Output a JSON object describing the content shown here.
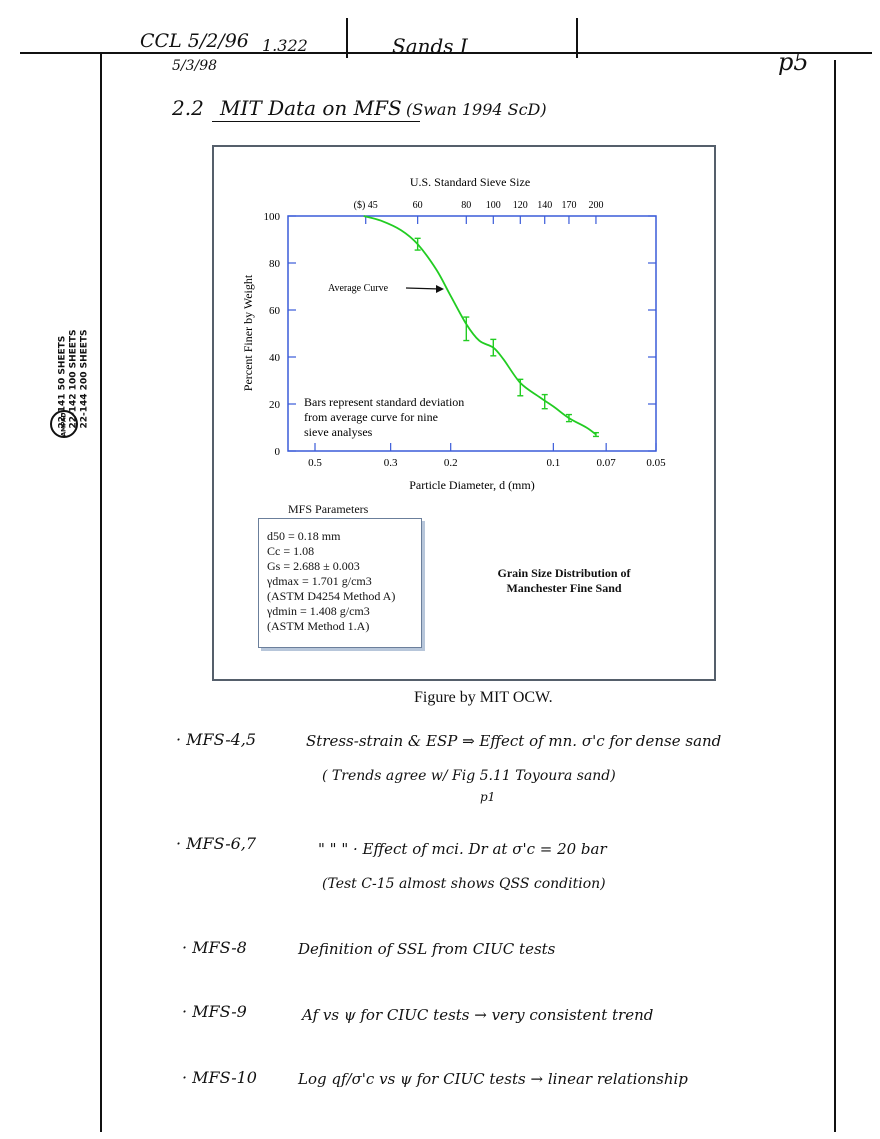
{
  "header": {
    "date_code": "CCL 5/2/96",
    "ref": "1.322",
    "date2": "5/3/98",
    "title": "Sands I",
    "page": "p5"
  },
  "heading": {
    "number": "2.2",
    "text": "MIT Data on MFS",
    "source": "(Swan 1994 ScD)"
  },
  "pad_label": {
    "lines": [
      "22-141   50 SHEETS",
      "22-142  100 SHEETS",
      "22-144  200 SHEETS"
    ],
    "brand": "AMPAD"
  },
  "chart_data": {
    "type": "line",
    "title": "U.S. Standard Sieve Size",
    "top_ticks": [
      "($) 45",
      "60",
      "80",
      "100",
      "120",
      "140",
      "170",
      "200"
    ],
    "top_tick_d": [
      0.355,
      0.25,
      0.18,
      0.15,
      0.125,
      0.106,
      0.09,
      0.075
    ],
    "xlabel": "Particle Diameter, d (mm)",
    "ylabel": "Percent Finer by Weight",
    "x_ticks": [
      "0.5",
      "0.3",
      "0.2",
      "0.1",
      "0.07",
      "0.05"
    ],
    "x_tick_d": [
      0.5,
      0.3,
      0.2,
      0.1,
      0.07,
      0.05
    ],
    "x_scale": "log, decreasing",
    "xlim": [
      0.6,
      0.05
    ],
    "ylim": [
      0,
      100
    ],
    "y_ticks": [
      "0",
      "20",
      "40",
      "60",
      "80",
      "100"
    ],
    "curve": {
      "d": [
        0.36,
        0.32,
        0.28,
        0.25,
        0.22,
        0.2,
        0.18,
        0.165,
        0.15,
        0.14,
        0.125,
        0.11,
        0.1,
        0.09,
        0.08,
        0.075
      ],
      "p": [
        100,
        98,
        94,
        88,
        77,
        66,
        54,
        47,
        44,
        39,
        29,
        23,
        19,
        14,
        10,
        7
      ]
    },
    "error_bars": [
      {
        "d": 0.25,
        "p": 88,
        "sd": 2.5
      },
      {
        "d": 0.18,
        "p": 52,
        "sd": 5
      },
      {
        "d": 0.15,
        "p": 44,
        "sd": 3.5
      },
      {
        "d": 0.125,
        "p": 27,
        "sd": 3.5
      },
      {
        "d": 0.106,
        "p": 21,
        "sd": 3
      },
      {
        "d": 0.09,
        "p": 14,
        "sd": 1.5
      },
      {
        "d": 0.075,
        "p": 7,
        "sd": 0.8
      }
    ],
    "annotation_curve": "Average Curve",
    "annotation_bars": [
      "Bars represent standard deviation",
      "from average curve for nine",
      "sieve analyses"
    ],
    "curve_color": "#22cc22",
    "axis_color": "#3a5bd9"
  },
  "params": {
    "title": "MFS Parameters",
    "lines": [
      "d50 = 0.18 mm",
      "Cc = 1.08",
      "Gs = 2.688 ± 0.003",
      "γdmax = 1.701 g/cm3",
      "(ASTM D4254 Method A)",
      "γdmin = 1.408 g/cm3",
      "(ASTM Method 1.A)"
    ]
  },
  "figure_caption": [
    "Grain Size Distribution of",
    "Manchester Fine Sand"
  ],
  "credit": "Figure by MIT OCW.",
  "notes": [
    {
      "label": "· MFS-4,5",
      "text": "Stress-strain & ESP  ⇒  Effect of mn. σ'c for dense sand"
    },
    {
      "label": "",
      "text": "( Trends agree w/ Fig 5.11  Toyoura sand)"
    },
    {
      "label": "",
      "text": "p1"
    },
    {
      "label": "· MFS-6,7",
      "text": "\"      \"      \"   ·  Effect of mci. Dr at σ'c = 20 bar"
    },
    {
      "label": "",
      "text": "(Test C-15 almost shows QSS condition)"
    },
    {
      "label": "· MFS-8",
      "text": "Definition of SSL from CIUC tests"
    },
    {
      "label": "· MFS-9",
      "text": "Af  vs  ψ  for CIUC tests → very consistent trend"
    },
    {
      "label": "· MFS-10",
      "text": "Log qf/σ'c  vs  ψ for CIUC tests → linear relationship"
    }
  ]
}
